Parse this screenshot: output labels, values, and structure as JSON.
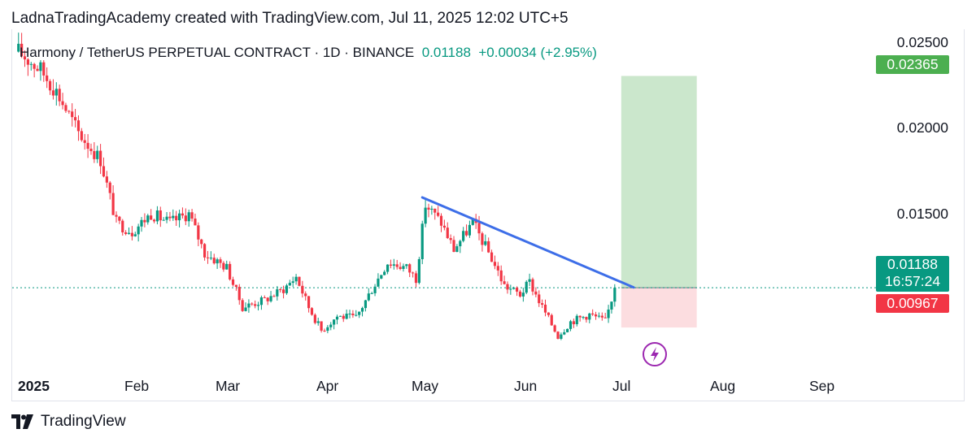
{
  "header": {
    "text": "LadnaTradingAcademy created with TradingView.com, Jul 11, 2025 12:02 UTC+5"
  },
  "legend": {
    "symbol": "Harmony / TetherUS PERPETUAL CONTRACT · 1D · BINANCE",
    "price": "0.01188",
    "change": "+0.00034 (+2.95%)"
  },
  "price_axis": [
    "0.02500",
    "0.02000",
    "0.01500"
  ],
  "tags": {
    "target": "0.02365",
    "current": "0.01188",
    "countdown": "16:57:24",
    "stop": "0.00967"
  },
  "time_axis": [
    "2025",
    "Feb",
    "Mar",
    "Apr",
    "May",
    "Jun",
    "Jul",
    "Aug",
    "Sep"
  ],
  "footer": {
    "brand": "TradingView"
  },
  "icons": {
    "flash": "lightning-icon",
    "logo": "tradingview-logo-icon"
  },
  "colors": {
    "up": "#089981",
    "down": "#f23645",
    "trendline": "#3d6ee8",
    "target_zone": "#c8e6c9",
    "stop_zone": "#fcdde0",
    "target_tag": "#4caf50",
    "stop_tag": "#f23645"
  },
  "chart_data": {
    "type": "candlestick",
    "symbol": "ONE/USDT perpetual",
    "interval": "1D",
    "x_range": [
      "2025-01-01",
      "2025-09-30"
    ],
    "ylim": [
      0.0071,
      0.0262
    ],
    "last_price": 0.01188,
    "anchors": [
      {
        "date": "2025-01-03",
        "price": 0.025
      },
      {
        "date": "2025-01-10",
        "price": 0.024
      },
      {
        "date": "2025-01-15",
        "price": 0.0228
      },
      {
        "date": "2025-01-22",
        "price": 0.0205
      },
      {
        "date": "2025-01-29",
        "price": 0.019
      },
      {
        "date": "2025-02-03",
        "price": 0.0155
      },
      {
        "date": "2025-02-08",
        "price": 0.015
      },
      {
        "date": "2025-02-14",
        "price": 0.016
      },
      {
        "date": "2025-02-20",
        "price": 0.0155
      },
      {
        "date": "2025-02-26",
        "price": 0.016
      },
      {
        "date": "2025-03-03",
        "price": 0.0138
      },
      {
        "date": "2025-03-10",
        "price": 0.013
      },
      {
        "date": "2025-03-15",
        "price": 0.0108
      },
      {
        "date": "2025-03-22",
        "price": 0.0112
      },
      {
        "date": "2025-03-28",
        "price": 0.0118
      },
      {
        "date": "2025-04-01",
        "price": 0.0125
      },
      {
        "date": "2025-04-05",
        "price": 0.0108
      },
      {
        "date": "2025-04-09",
        "price": 0.0095
      },
      {
        "date": "2025-04-14",
        "price": 0.0103
      },
      {
        "date": "2025-04-20",
        "price": 0.0102
      },
      {
        "date": "2025-04-25",
        "price": 0.0118
      },
      {
        "date": "2025-04-30",
        "price": 0.0133
      },
      {
        "date": "2025-05-06",
        "price": 0.013
      },
      {
        "date": "2025-05-09",
        "price": 0.0124
      },
      {
        "date": "2025-05-12",
        "price": 0.0165
      },
      {
        "date": "2025-05-17",
        "price": 0.0155
      },
      {
        "date": "2025-05-21",
        "price": 0.014
      },
      {
        "date": "2025-05-27",
        "price": 0.0155
      },
      {
        "date": "2025-06-02",
        "price": 0.0135
      },
      {
        "date": "2025-06-06",
        "price": 0.012
      },
      {
        "date": "2025-06-11",
        "price": 0.0115
      },
      {
        "date": "2025-06-14",
        "price": 0.0122
      },
      {
        "date": "2025-06-18",
        "price": 0.0108
      },
      {
        "date": "2025-06-23",
        "price": 0.0092
      },
      {
        "date": "2025-06-27",
        "price": 0.01
      },
      {
        "date": "2025-07-03",
        "price": 0.0104
      },
      {
        "date": "2025-07-08",
        "price": 0.01
      },
      {
        "date": "2025-07-11",
        "price": 0.01188
      }
    ],
    "trendline": {
      "from": {
        "date": "2025-05-11",
        "price": 0.0169
      },
      "to": {
        "date": "2025-07-17",
        "price": 0.0119
      }
    },
    "position": {
      "entry": 0.01188,
      "target": 0.02365,
      "stop": 0.00967,
      "start": "2025-07-11",
      "end": "2025-08-06"
    },
    "current_price_line": 0.01188
  }
}
